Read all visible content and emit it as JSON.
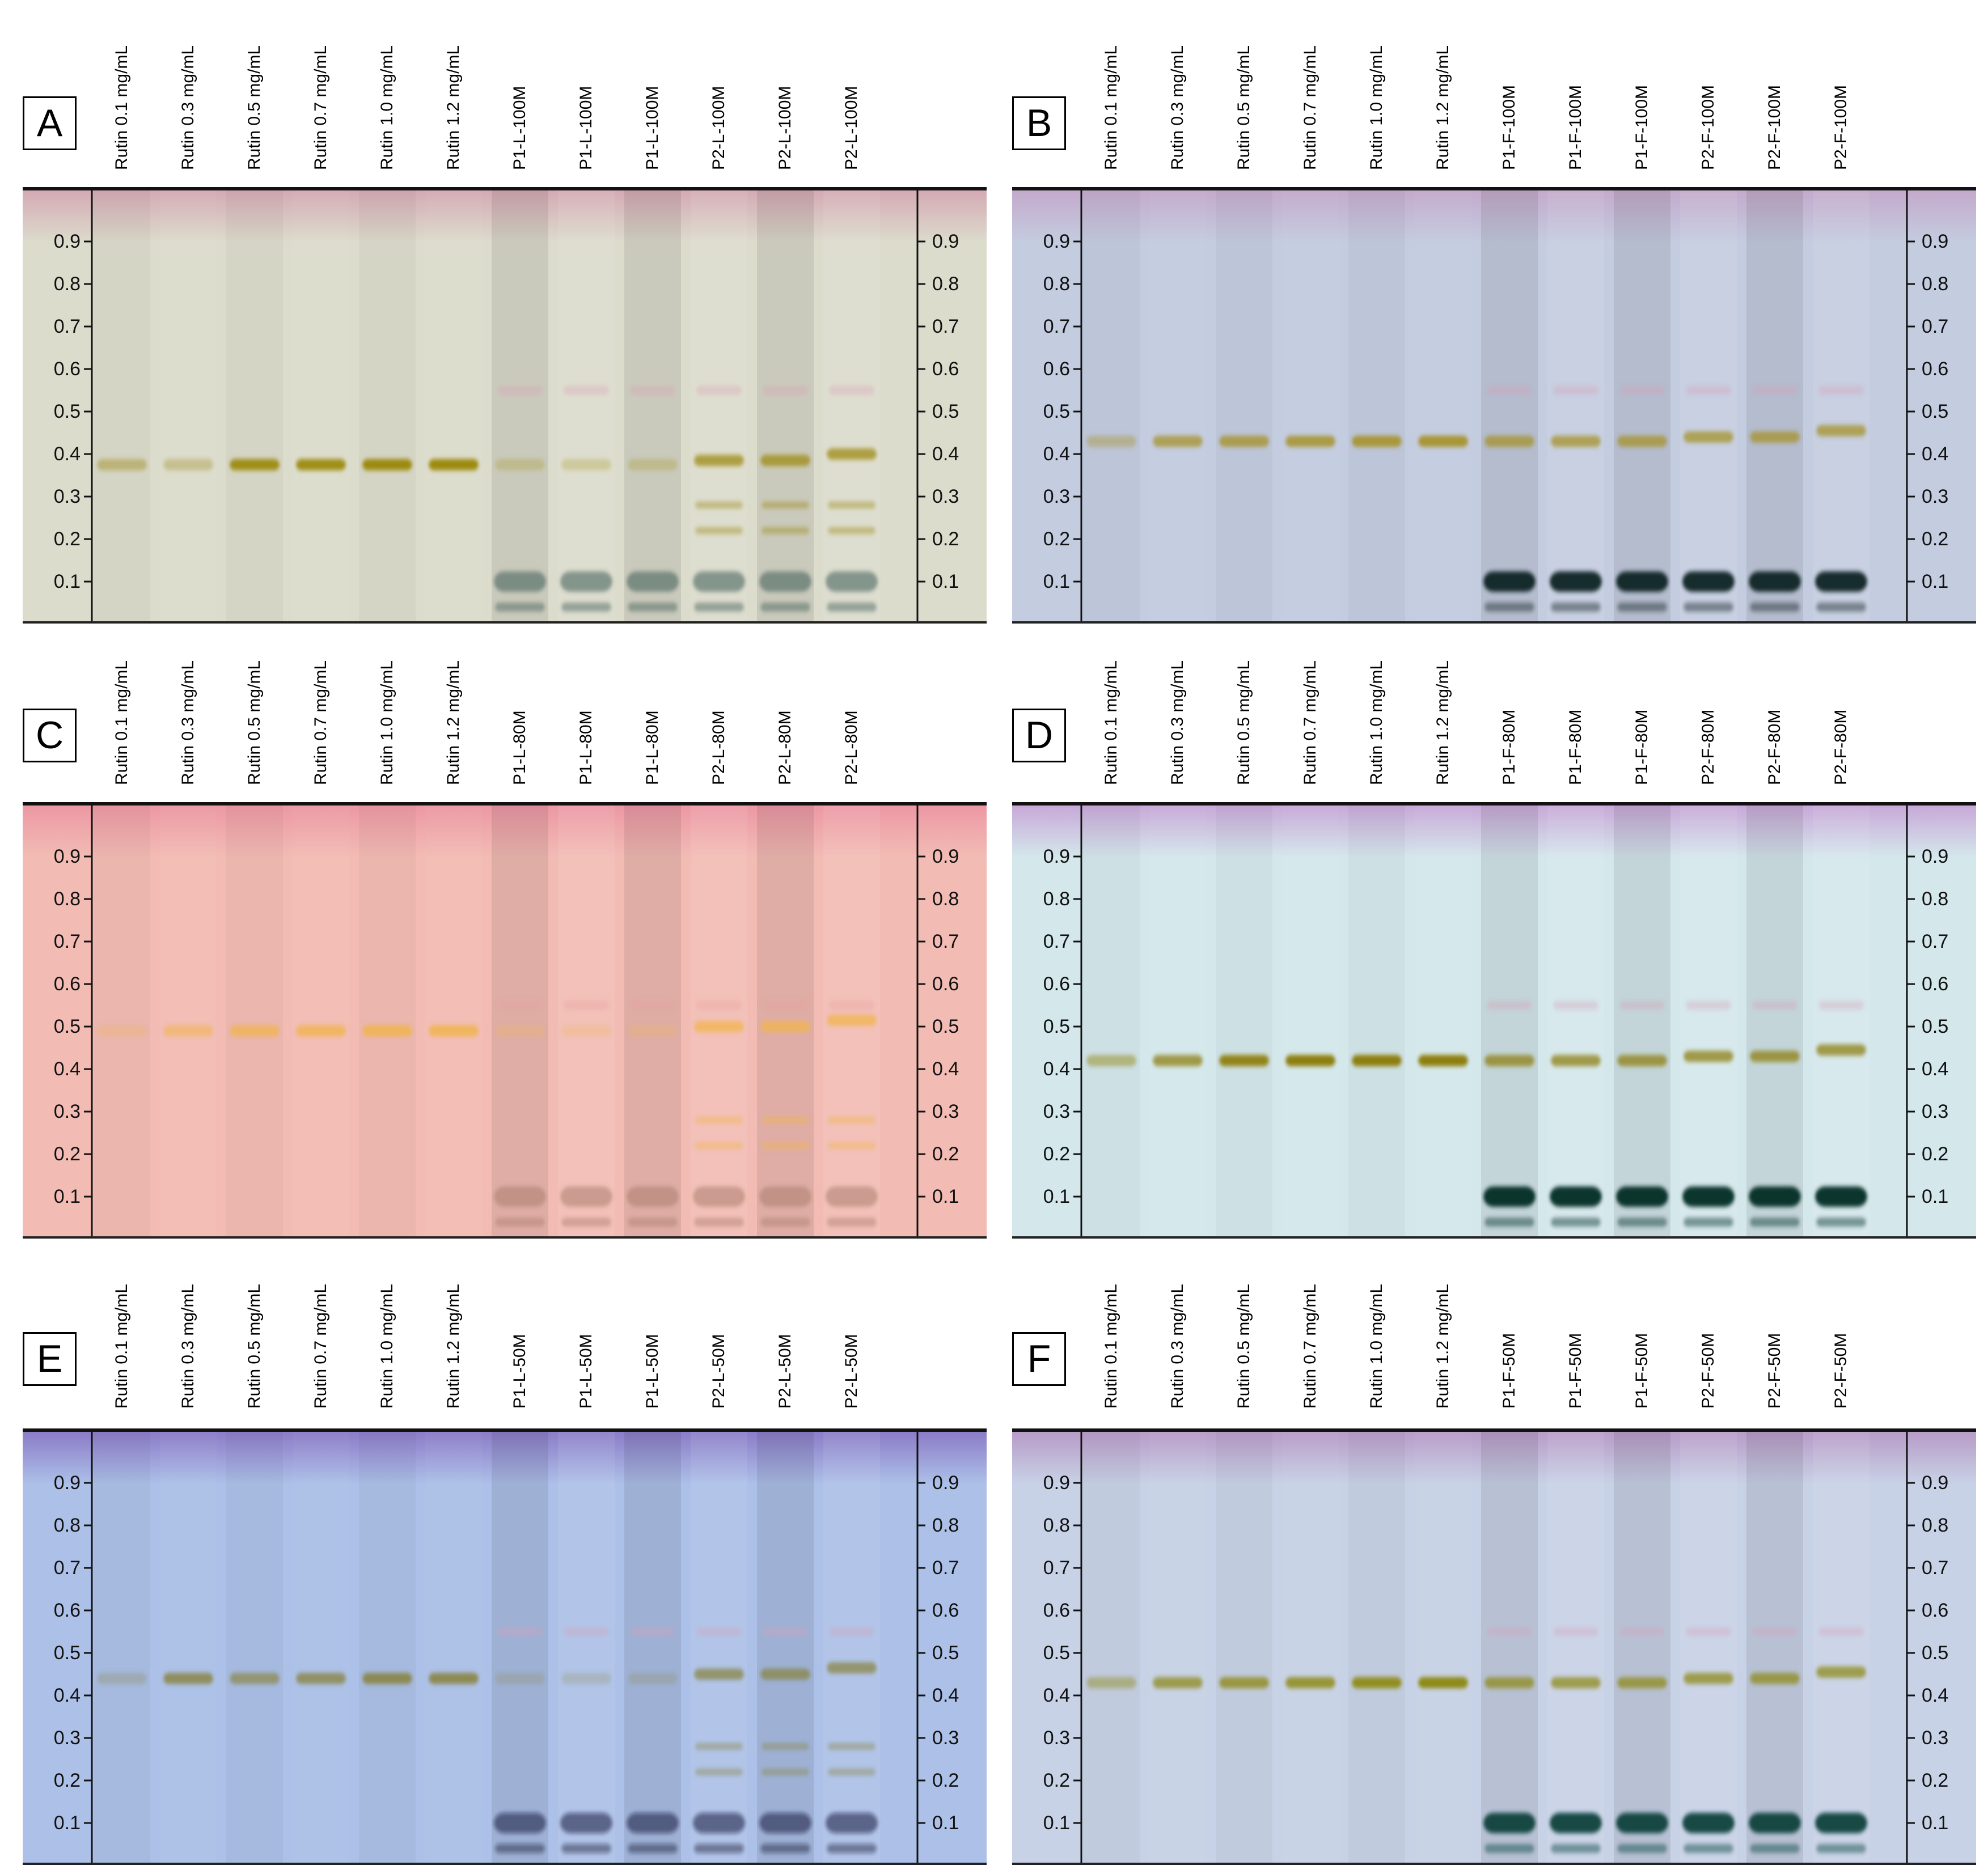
{
  "panels": [
    {
      "letter": "A",
      "lanes": [
        "Rutin 0.1 mg/mL",
        "Rutin 0.3 mg/mL",
        "Rutin 0.5 mg/mL",
        "Rutin 0.7 mg/mL",
        "Rutin 1.0 mg/mL",
        "Rutin 1.2 mg/mL",
        "P1-L-100M",
        "P1-L-100M",
        "P1-L-100M",
        "P2-L-100M",
        "P2-L-100M",
        "P2-L-100M"
      ],
      "rf_ticks": [
        "0.9",
        "0.8",
        "0.7",
        "0.6",
        "0.5",
        "0.4",
        "0.3",
        "0.2",
        "0.1"
      ],
      "colors": {
        "background": "#dcdccd",
        "top": "#d4aab4",
        "band": "#9c8a10",
        "dark": "#3a5a52"
      }
    },
    {
      "letter": "B",
      "lanes": [
        "Rutin 0.1 mg/mL",
        "Rutin 0.3 mg/mL",
        "Rutin 0.5 mg/mL",
        "Rutin 0.7 mg/mL",
        "Rutin 1.0 mg/mL",
        "Rutin 1.2 mg/mL",
        "P1-F-100M",
        "P1-F-100M",
        "P1-F-100M",
        "P2-F-100M",
        "P2-F-100M",
        "P2-F-100M"
      ],
      "rf_ticks": [
        "0.9",
        "0.8",
        "0.7",
        "0.6",
        "0.5",
        "0.4",
        "0.3",
        "0.2",
        "0.1"
      ],
      "colors": {
        "background": "#c4cce0",
        "top": "#c4aacc",
        "band": "#a6922a",
        "dark": "#122424"
      }
    },
    {
      "letter": "C",
      "lanes": [
        "Rutin 0.1 mg/mL",
        "Rutin 0.3 mg/mL",
        "Rutin 0.5 mg/mL",
        "Rutin 0.7 mg/mL",
        "Rutin 1.0 mg/mL",
        "Rutin 1.2 mg/mL",
        "P1-L-80M",
        "P1-L-80M",
        "P1-L-80M",
        "P2-L-80M",
        "P2-L-80M",
        "P2-L-80M"
      ],
      "rf_ticks": [
        "0.9",
        "0.8",
        "0.7",
        "0.6",
        "0.5",
        "0.4",
        "0.3",
        "0.2",
        "0.1"
      ],
      "colors": {
        "background": "#f2bcb4",
        "top": "#ec98a4",
        "band": "#f0b44c",
        "dark": "#a87c6c"
      }
    },
    {
      "letter": "D",
      "lanes": [
        "Rutin 0.1 mg/mL",
        "Rutin 0.3 mg/mL",
        "Rutin 0.5 mg/mL",
        "Rutin 0.7 mg/mL",
        "Rutin 1.0 mg/mL",
        "Rutin 1.2 mg/mL",
        "P1-F-80M",
        "P1-F-80M",
        "P1-F-80M",
        "P2-F-80M",
        "P2-F-80M",
        "P2-F-80M"
      ],
      "rf_ticks": [
        "0.9",
        "0.8",
        "0.7",
        "0.6",
        "0.5",
        "0.4",
        "0.3",
        "0.2",
        "0.1"
      ],
      "colors": {
        "background": "#d4e8ec",
        "top": "#c8a8d8",
        "band": "#8e7e0c",
        "dark": "#062a22"
      }
    },
    {
      "letter": "E",
      "lanes": [
        "Rutin 0.1 mg/mL",
        "Rutin 0.3 mg/mL",
        "Rutin 0.5 mg/mL",
        "Rutin 0.7 mg/mL",
        "Rutin 1.0 mg/mL",
        "Rutin 1.2 mg/mL",
        "P1-L-50M",
        "P1-L-50M",
        "P1-L-50M",
        "P2-L-50M",
        "P2-L-50M",
        "P2-L-50M"
      ],
      "rf_ticks": [
        "0.9",
        "0.8",
        "0.7",
        "0.6",
        "0.5",
        "0.4",
        "0.3",
        "0.2",
        "0.1"
      ],
      "colors": {
        "background": "#acc0e8",
        "top": "#8c7cc8",
        "band": "#8a8444",
        "dark": "#101838"
      }
    },
    {
      "letter": "F",
      "lanes": [
        "Rutin 0.1 mg/mL",
        "Rutin 0.3 mg/mL",
        "Rutin 0.5 mg/mL",
        "Rutin 0.7 mg/mL",
        "Rutin 1.0 mg/mL",
        "Rutin 1.2 mg/mL",
        "P1-F-50M",
        "P1-F-50M",
        "P1-F-50M",
        "P2-F-50M",
        "P2-F-50M",
        "P2-F-50M"
      ],
      "rf_ticks": [
        "0.9",
        "0.8",
        "0.7",
        "0.6",
        "0.5",
        "0.4",
        "0.3",
        "0.2",
        "0.1"
      ],
      "colors": {
        "background": "#c8d2e6",
        "top": "#b89cc8",
        "band": "#8e8a18",
        "dark": "#08403c"
      }
    }
  ]
}
